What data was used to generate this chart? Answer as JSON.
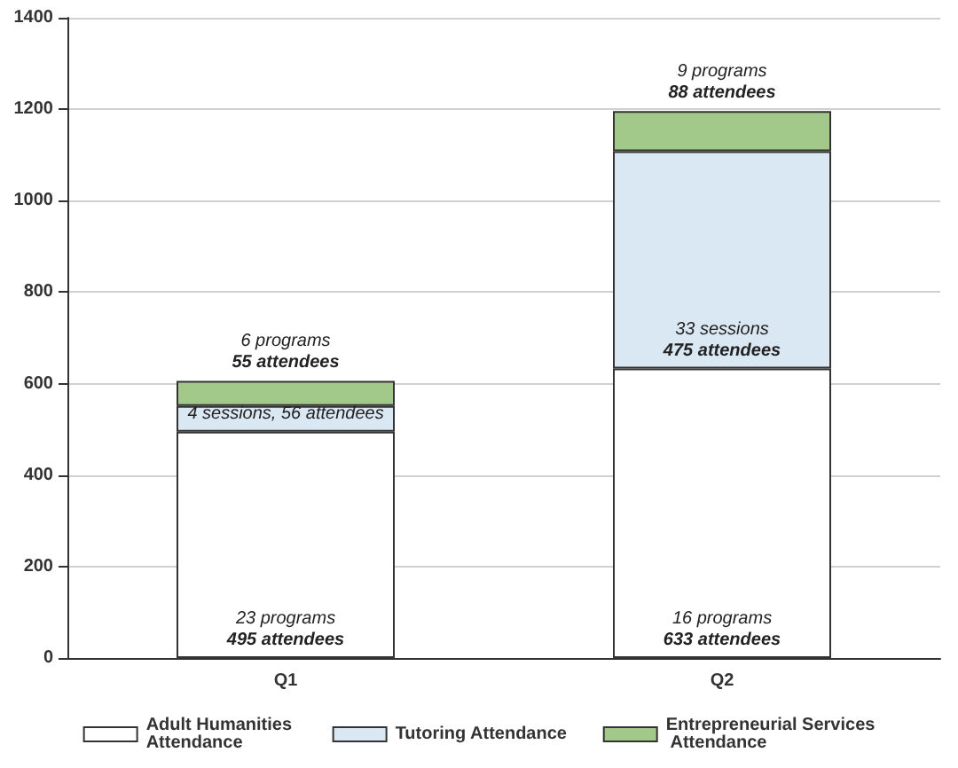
{
  "chart_data": {
    "type": "bar",
    "stacked": true,
    "categories": [
      "Q1",
      "Q2"
    ],
    "series": [
      {
        "name": "Adult Humanities Attendance",
        "color": "#ffffff",
        "values": [
          495,
          633
        ],
        "value_labels": [
          "23 programs\n495 attendees",
          "16 programs\n633 attendees"
        ]
      },
      {
        "name": "Tutoring Attendance",
        "color": "#dae8f3",
        "values": [
          56,
          475
        ],
        "value_labels": [
          "4 sessions, 56 attendees",
          "33 sessions\n475 attendees"
        ]
      },
      {
        "name": "Entrepreneurial Services Attendance",
        "color": "#a3c98a",
        "values": [
          55,
          88
        ],
        "value_labels": [
          "6 programs\n55 attendees",
          "9 programs\n88 attendees"
        ]
      }
    ],
    "ylim": [
      0,
      1400
    ],
    "yticks": [
      0,
      200,
      400,
      600,
      800,
      1000,
      1200,
      1400
    ],
    "grid": "y",
    "legend": "bottom"
  }
}
